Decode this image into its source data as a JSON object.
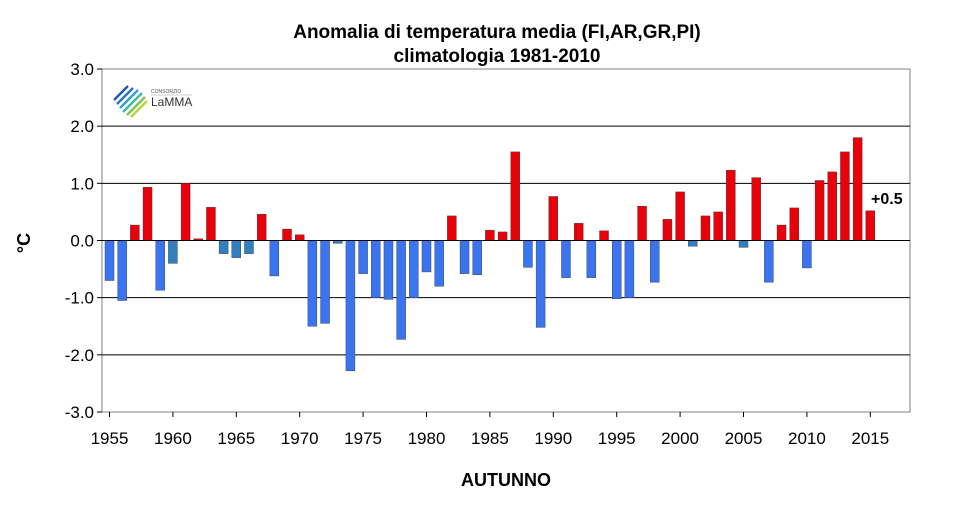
{
  "logo": {
    "small_text": "CONSORZIO",
    "name": "LaMMA"
  },
  "chart_data": {
    "type": "bar",
    "title": "Anomalia di temperatura media (FI,AR,GR,PI)",
    "subtitle": "climatologia 1981-2010",
    "xlabel": "AUTUNNO",
    "ylabel": "°C",
    "ylim": [
      -3.0,
      3.0
    ],
    "yticks": [
      3.0,
      2.0,
      1.0,
      0.0,
      -1.0,
      -2.0,
      -3.0
    ],
    "ytick_labels": [
      "3.0",
      "2.0",
      "1.0",
      "0.0",
      "-1.0",
      "-2.0",
      "-3.0"
    ],
    "xticks": [
      "1955",
      "1960",
      "1965",
      "1970",
      "1975",
      "1980",
      "1985",
      "1990",
      "1995",
      "2000",
      "2005",
      "2010",
      "2015"
    ],
    "grid": true,
    "colors": {
      "positive": "#e8000a",
      "negative": "#3a74f0",
      "near_zero_negative": "#2f7fc1"
    },
    "annotation": "+0.5",
    "years": [
      1955,
      1956,
      1957,
      1958,
      1959,
      1960,
      1961,
      1962,
      1963,
      1964,
      1965,
      1966,
      1967,
      1968,
      1969,
      1970,
      1971,
      1972,
      1973,
      1974,
      1975,
      1976,
      1977,
      1978,
      1979,
      1980,
      1981,
      1982,
      1983,
      1984,
      1985,
      1986,
      1987,
      1988,
      1989,
      1990,
      1991,
      1992,
      1993,
      1994,
      1995,
      1996,
      1997,
      1998,
      1999,
      2000,
      2001,
      2002,
      2003,
      2004,
      2005,
      2006,
      2007,
      2008,
      2009,
      2010,
      2011,
      2012,
      2013,
      2014,
      2015
    ],
    "values": [
      -0.7,
      -1.05,
      0.27,
      0.93,
      -0.87,
      -0.4,
      1.0,
      0.03,
      0.58,
      -0.23,
      -0.3,
      -0.23,
      0.46,
      -0.62,
      0.2,
      0.1,
      -1.5,
      -1.45,
      -0.05,
      -2.28,
      -0.58,
      -1.0,
      -1.03,
      -1.73,
      -1.0,
      -0.55,
      -0.8,
      0.43,
      -0.58,
      -0.6,
      0.18,
      0.15,
      1.55,
      -0.47,
      -1.52,
      0.77,
      -0.65,
      0.3,
      -0.65,
      0.17,
      -1.02,
      -1.0,
      0.6,
      -0.73,
      0.37,
      0.85,
      -0.1,
      0.43,
      0.5,
      1.23,
      -0.12,
      1.1,
      -0.73,
      0.27,
      0.57,
      -0.48,
      1.05,
      1.2,
      1.55,
      1.8,
      0.52
    ]
  }
}
